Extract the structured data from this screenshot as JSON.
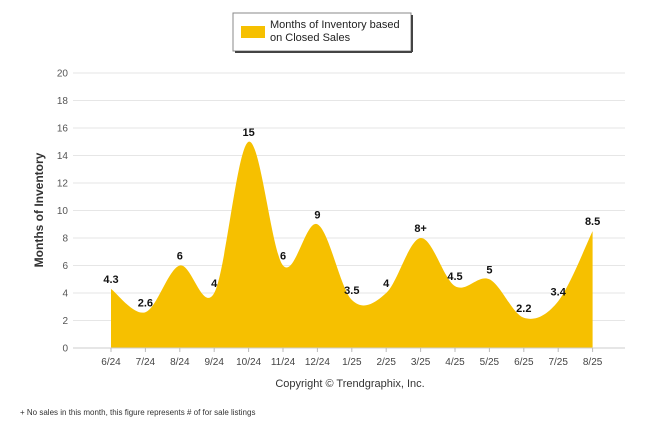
{
  "chart_data": {
    "type": "area",
    "categories": [
      "6/24",
      "7/24",
      "8/24",
      "9/24",
      "10/24",
      "11/24",
      "12/24",
      "1/25",
      "2/25",
      "3/25",
      "4/25",
      "5/25",
      "6/25",
      "7/25",
      "8/25"
    ],
    "series": [
      {
        "name": "Months of Inventory based on Closed Sales",
        "values": [
          4.3,
          2.6,
          6,
          4,
          15,
          6,
          9,
          3.5,
          4,
          8,
          4.5,
          5,
          2.2,
          3.4,
          8.5
        ],
        "labels": [
          "4.3",
          "2.6",
          "6",
          "4",
          "15",
          "6",
          "9",
          "3.5",
          "4",
          "8+",
          "4.5",
          "5",
          "2.2",
          "3.4",
          "8.5"
        ],
        "color": "#F6C000"
      }
    ],
    "legend": {
      "lines": [
        "Months of Inventory based",
        "on Closed Sales"
      ],
      "position": "top-center"
    },
    "ylabel": "Months of Inventory",
    "xlabel": "",
    "ylim": [
      0,
      20
    ],
    "yticks": [
      0,
      2,
      4,
      6,
      8,
      10,
      12,
      14,
      16,
      18,
      20
    ],
    "grid": true,
    "copyright": "Copyright © Trendgraphix, Inc.",
    "footnote": "+  No sales in this month, this figure represents # of for sale listings"
  }
}
